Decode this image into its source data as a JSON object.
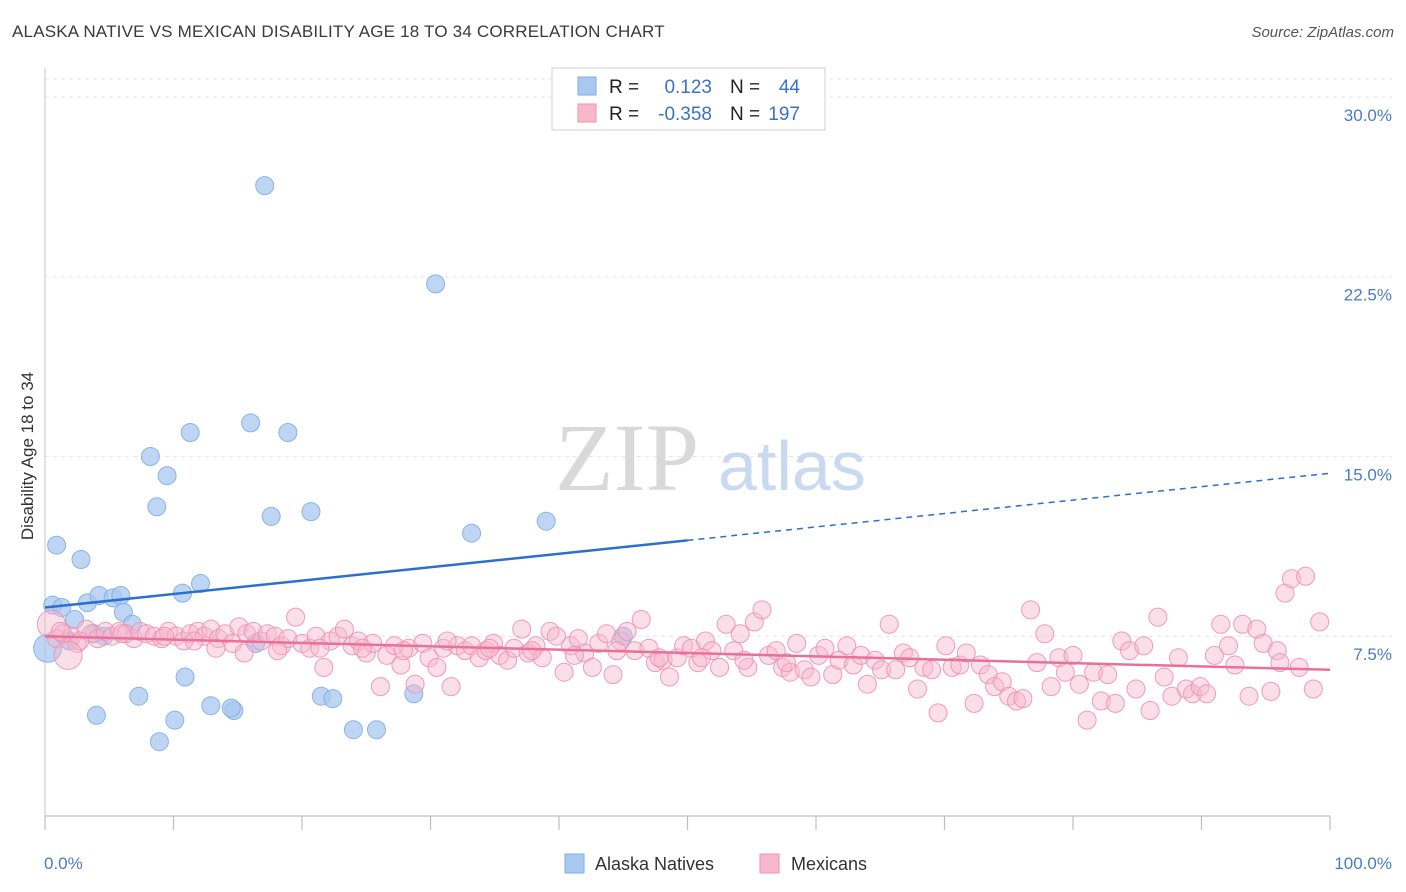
{
  "title": "ALASKA NATIVE VS MEXICAN DISABILITY AGE 18 TO 34 CORRELATION CHART",
  "source": "Source: ZipAtlas.com",
  "watermark": {
    "zip": "ZIP",
    "atlas": "atlas"
  },
  "legend_top": {
    "r_label": "R =",
    "n_label": "N =",
    "rows": [
      {
        "r": "0.123",
        "n": "44",
        "color": "#a8c8f0"
      },
      {
        "r": "-0.358",
        "n": "197",
        "color": "#f7b8cb"
      }
    ]
  },
  "chart_data": {
    "type": "scatter",
    "title": "ALASKA NATIVE VS MEXICAN DISABILITY AGE 18 TO 34 CORRELATION CHART",
    "xlabel": "",
    "ylabel": "Disability Age 18 to 34",
    "xlim": [
      0,
      100
    ],
    "ylim": [
      0,
      31
    ],
    "x_ticks": [
      "0.0%",
      "100.0%"
    ],
    "y_ticks": [
      {
        "value": 7.5,
        "label": "7.5%"
      },
      {
        "value": 15.0,
        "label": "15.0%"
      },
      {
        "value": 22.5,
        "label": "22.5%"
      },
      {
        "value": 30.0,
        "label": "30.0%"
      }
    ],
    "grid": true,
    "legend_position": "bottom-center",
    "series": [
      {
        "name": "Alaska Natives",
        "color": "#7eaee6",
        "fill": "#a8c8f0",
        "r": 0.123,
        "n": 44,
        "trend": {
          "x0": 0,
          "y0": 8.7,
          "x1": 100,
          "y1": 14.3,
          "solid_until": 50
        },
        "points": [
          [
            0.2,
            7.0
          ],
          [
            0.6,
            8.8
          ],
          [
            0.9,
            11.3
          ],
          [
            1.3,
            8.7
          ],
          [
            1.9,
            7.3
          ],
          [
            2.3,
            8.2
          ],
          [
            2.8,
            10.7
          ],
          [
            3.3,
            8.9
          ],
          [
            3.8,
            7.6
          ],
          [
            4.2,
            9.2
          ],
          [
            4.6,
            7.5
          ],
          [
            4.0,
            4.2
          ],
          [
            5.3,
            9.1
          ],
          [
            5.9,
            9.2
          ],
          [
            6.1,
            8.5
          ],
          [
            6.8,
            8.0
          ],
          [
            7.3,
            5.0
          ],
          [
            8.2,
            15.0
          ],
          [
            8.7,
            12.9
          ],
          [
            9.5,
            14.2
          ],
          [
            8.9,
            3.1
          ],
          [
            10.1,
            4.0
          ],
          [
            10.9,
            5.8
          ],
          [
            10.7,
            9.3
          ],
          [
            11.3,
            16.0
          ],
          [
            12.1,
            9.7
          ],
          [
            12.9,
            4.6
          ],
          [
            14.7,
            4.4
          ],
          [
            16.0,
            16.4
          ],
          [
            14.5,
            4.5
          ],
          [
            16.4,
            7.2
          ],
          [
            17.1,
            26.3
          ],
          [
            17.6,
            12.5
          ],
          [
            18.9,
            16.0
          ],
          [
            20.7,
            12.7
          ],
          [
            21.5,
            5.0
          ],
          [
            22.4,
            4.9
          ],
          [
            24.0,
            3.6
          ],
          [
            25.8,
            3.6
          ],
          [
            28.7,
            5.1
          ],
          [
            30.4,
            22.2
          ],
          [
            33.2,
            11.8
          ],
          [
            39.0,
            12.3
          ],
          [
            45.0,
            7.5
          ]
        ]
      },
      {
        "name": "Mexicans",
        "color": "#f090b0",
        "fill": "#f7b8cb",
        "r": -0.358,
        "n": 197,
        "trend": {
          "x0": 0,
          "y0": 7.5,
          "x1": 100,
          "y1": 6.1,
          "solid_until": 100
        },
        "points": [
          [
            0.5,
            8.0
          ],
          [
            0.9,
            7.4
          ],
          [
            1.4,
            7.6
          ],
          [
            2.1,
            7.5
          ],
          [
            2.5,
            7.2
          ],
          [
            3.2,
            7.8
          ],
          [
            3.6,
            7.6
          ],
          [
            4.1,
            7.4
          ],
          [
            4.7,
            7.7
          ],
          [
            5.2,
            7.5
          ],
          [
            5.8,
            7.7
          ],
          [
            6.3,
            7.6
          ],
          [
            6.9,
            7.4
          ],
          [
            7.4,
            7.7
          ],
          [
            7.9,
            7.6
          ],
          [
            8.5,
            7.5
          ],
          [
            9.1,
            7.4
          ],
          [
            9.6,
            7.7
          ],
          [
            10.2,
            7.5
          ],
          [
            10.8,
            7.3
          ],
          [
            11.3,
            7.6
          ],
          [
            11.9,
            7.7
          ],
          [
            12.4,
            7.5
          ],
          [
            12.9,
            7.8
          ],
          [
            13.5,
            7.4
          ],
          [
            14.0,
            7.6
          ],
          [
            14.6,
            7.2
          ],
          [
            15.1,
            7.9
          ],
          [
            15.7,
            7.6
          ],
          [
            16.2,
            7.7
          ],
          [
            16.8,
            7.3
          ],
          [
            17.3,
            7.6
          ],
          [
            17.9,
            7.5
          ],
          [
            18.4,
            7.1
          ],
          [
            18.9,
            7.4
          ],
          [
            19.5,
            8.3
          ],
          [
            20.0,
            7.2
          ],
          [
            20.6,
            7.0
          ],
          [
            21.1,
            7.5
          ],
          [
            21.7,
            6.2
          ],
          [
            22.2,
            7.3
          ],
          [
            22.8,
            7.5
          ],
          [
            23.3,
            7.8
          ],
          [
            23.9,
            7.1
          ],
          [
            24.4,
            7.3
          ],
          [
            25.0,
            6.8
          ],
          [
            25.5,
            7.2
          ],
          [
            26.1,
            5.4
          ],
          [
            26.6,
            6.7
          ],
          [
            27.2,
            7.1
          ],
          [
            27.7,
            6.3
          ],
          [
            28.3,
            7.0
          ],
          [
            28.8,
            5.5
          ],
          [
            29.4,
            7.2
          ],
          [
            29.9,
            6.6
          ],
          [
            30.5,
            6.2
          ],
          [
            31.0,
            7.0
          ],
          [
            31.6,
            5.4
          ],
          [
            32.1,
            7.1
          ],
          [
            32.7,
            6.9
          ],
          [
            33.2,
            7.1
          ],
          [
            33.8,
            6.6
          ],
          [
            34.3,
            6.9
          ],
          [
            34.9,
            7.2
          ],
          [
            35.4,
            6.7
          ],
          [
            36.0,
            6.5
          ],
          [
            36.5,
            7.0
          ],
          [
            37.1,
            7.8
          ],
          [
            37.6,
            6.8
          ],
          [
            38.2,
            7.1
          ],
          [
            38.7,
            6.6
          ],
          [
            39.3,
            7.7
          ],
          [
            39.8,
            7.5
          ],
          [
            40.4,
            6.0
          ],
          [
            40.9,
            7.1
          ],
          [
            41.5,
            7.4
          ],
          [
            42.0,
            6.8
          ],
          [
            42.6,
            6.2
          ],
          [
            43.1,
            7.2
          ],
          [
            43.7,
            7.6
          ],
          [
            44.2,
            5.9
          ],
          [
            44.8,
            7.3
          ],
          [
            45.3,
            7.7
          ],
          [
            45.9,
            6.9
          ],
          [
            46.4,
            8.2
          ],
          [
            47.0,
            7.0
          ],
          [
            47.5,
            6.4
          ],
          [
            48.1,
            6.5
          ],
          [
            48.6,
            5.8
          ],
          [
            49.2,
            6.6
          ],
          [
            49.7,
            7.1
          ],
          [
            50.3,
            7.0
          ],
          [
            50.8,
            6.4
          ],
          [
            51.4,
            7.3
          ],
          [
            51.9,
            6.9
          ],
          [
            52.5,
            6.2
          ],
          [
            53.0,
            8.0
          ],
          [
            53.6,
            6.9
          ],
          [
            54.1,
            7.6
          ],
          [
            54.7,
            6.2
          ],
          [
            55.2,
            8.1
          ],
          [
            55.8,
            8.6
          ],
          [
            56.3,
            6.7
          ],
          [
            56.9,
            6.9
          ],
          [
            57.4,
            6.2
          ],
          [
            58.0,
            6.0
          ],
          [
            58.5,
            7.2
          ],
          [
            59.1,
            6.1
          ],
          [
            59.6,
            5.8
          ],
          [
            60.2,
            6.7
          ],
          [
            60.7,
            7.0
          ],
          [
            61.3,
            5.9
          ],
          [
            61.8,
            6.5
          ],
          [
            62.4,
            7.1
          ],
          [
            62.9,
            6.3
          ],
          [
            63.5,
            6.7
          ],
          [
            64.0,
            5.5
          ],
          [
            64.6,
            6.5
          ],
          [
            65.1,
            6.1
          ],
          [
            65.7,
            8.0
          ],
          [
            66.2,
            6.1
          ],
          [
            66.8,
            6.8
          ],
          [
            67.3,
            6.6
          ],
          [
            67.9,
            5.3
          ],
          [
            68.4,
            6.2
          ],
          [
            69.0,
            6.1
          ],
          [
            69.5,
            4.3
          ],
          [
            70.1,
            7.1
          ],
          [
            70.6,
            6.2
          ],
          [
            71.2,
            6.3
          ],
          [
            71.7,
            6.8
          ],
          [
            72.3,
            4.7
          ],
          [
            72.8,
            6.3
          ],
          [
            73.4,
            5.9
          ],
          [
            73.9,
            5.4
          ],
          [
            74.5,
            5.6
          ],
          [
            75.0,
            5.0
          ],
          [
            75.6,
            4.8
          ],
          [
            76.1,
            4.9
          ],
          [
            76.7,
            8.6
          ],
          [
            77.2,
            6.4
          ],
          [
            77.8,
            7.6
          ],
          [
            78.3,
            5.4
          ],
          [
            78.9,
            6.6
          ],
          [
            79.4,
            6.0
          ],
          [
            80.0,
            6.7
          ],
          [
            80.5,
            5.5
          ],
          [
            81.1,
            4.0
          ],
          [
            81.6,
            6.0
          ],
          [
            82.2,
            4.8
          ],
          [
            82.7,
            5.9
          ],
          [
            83.3,
            4.7
          ],
          [
            83.8,
            7.3
          ],
          [
            84.4,
            6.9
          ],
          [
            84.9,
            5.3
          ],
          [
            85.5,
            7.1
          ],
          [
            86.0,
            4.4
          ],
          [
            86.6,
            8.3
          ],
          [
            87.1,
            5.8
          ],
          [
            87.7,
            5.0
          ],
          [
            88.2,
            6.6
          ],
          [
            88.8,
            5.3
          ],
          [
            89.3,
            5.1
          ],
          [
            89.9,
            5.4
          ],
          [
            90.4,
            5.1
          ],
          [
            91.0,
            6.7
          ],
          [
            91.5,
            8.0
          ],
          [
            92.1,
            7.1
          ],
          [
            92.6,
            6.3
          ],
          [
            93.2,
            8.0
          ],
          [
            93.7,
            5.0
          ],
          [
            94.3,
            7.8
          ],
          [
            94.8,
            7.2
          ],
          [
            95.4,
            5.2
          ],
          [
            95.9,
            6.9
          ],
          [
            96.5,
            9.3
          ],
          [
            96.1,
            6.4
          ],
          [
            97.0,
            9.9
          ],
          [
            97.6,
            6.2
          ],
          [
            98.1,
            10.0
          ],
          [
            98.7,
            5.3
          ],
          [
            99.2,
            8.1
          ],
          [
            1.2,
            7.7
          ],
          [
            2.7,
            7.3
          ],
          [
            6.0,
            7.6
          ],
          [
            9.3,
            7.5
          ],
          [
            11.6,
            7.3
          ],
          [
            13.3,
            7.0
          ],
          [
            15.5,
            6.8
          ],
          [
            18.1,
            6.9
          ],
          [
            21.4,
            7.0
          ],
          [
            24.7,
            7.0
          ],
          [
            27.9,
            6.9
          ],
          [
            31.3,
            7.3
          ],
          [
            34.6,
            7.0
          ],
          [
            37.9,
            6.9
          ],
          [
            41.2,
            6.7
          ],
          [
            44.5,
            6.9
          ],
          [
            47.8,
            6.6
          ],
          [
            51.1,
            6.6
          ],
          [
            54.4,
            6.5
          ],
          [
            57.7,
            6.4
          ],
          [
            1.8,
            6.7
          ]
        ]
      }
    ]
  }
}
